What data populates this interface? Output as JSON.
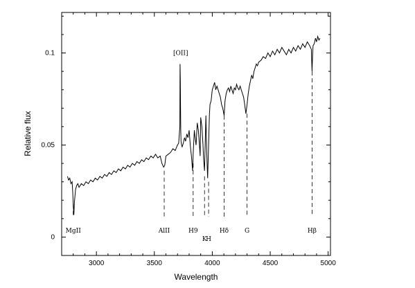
{
  "chart_data": {
    "type": "line",
    "title": "",
    "xlabel": "Wavelength",
    "ylabel": "Relative flux",
    "xlim": [
      2700,
      5020
    ],
    "ylim": [
      -0.01,
      0.122
    ],
    "x_ticks": [
      3000,
      3500,
      4000,
      4500,
      5000
    ],
    "x_tick_labels": [
      "3000",
      "3500",
      "4000",
      "4500",
      "5000"
    ],
    "y_ticks": [
      0,
      0.05,
      0.1
    ],
    "y_tick_labels": [
      "0",
      "0.05",
      "0.1"
    ],
    "grid": false,
    "series": [
      {
        "x": [
          2750,
          2760,
          2770,
          2780,
          2790,
          2795,
          2800,
          2805,
          2810,
          2820,
          2830,
          2840,
          2850,
          2870,
          2890,
          2910,
          2930,
          2950,
          2970,
          2990,
          3010,
          3030,
          3050,
          3070,
          3090,
          3110,
          3130,
          3150,
          3170,
          3190,
          3210,
          3230,
          3250,
          3270,
          3290,
          3310,
          3330,
          3350,
          3370,
          3390,
          3410,
          3430,
          3450,
          3470,
          3490,
          3510,
          3530,
          3550,
          3565,
          3580,
          3590,
          3600,
          3620,
          3640,
          3660,
          3680,
          3700,
          3710,
          3720,
          3722,
          3724,
          3726,
          3728,
          3730,
          3735,
          3740,
          3750,
          3760,
          3770,
          3780,
          3790,
          3800,
          3810,
          3820,
          3830,
          3835,
          3840,
          3845,
          3850,
          3860,
          3870,
          3880,
          3889,
          3895,
          3900,
          3910,
          3920,
          3925,
          3933,
          3940,
          3945,
          3950,
          3955,
          3960,
          3968,
          3975,
          3980,
          3990,
          4000,
          4010,
          4020,
          4030,
          4040,
          4050,
          4060,
          4070,
          4080,
          4090,
          4102,
          4110,
          4120,
          4130,
          4140,
          4150,
          4160,
          4170,
          4180,
          4190,
          4200,
          4210,
          4220,
          4230,
          4240,
          4250,
          4260,
          4270,
          4280,
          4290,
          4300,
          4310,
          4320,
          4330,
          4340,
          4350,
          4360,
          4370,
          4380,
          4390,
          4400,
          4420,
          4440,
          4460,
          4480,
          4500,
          4520,
          4540,
          4560,
          4580,
          4600,
          4620,
          4640,
          4660,
          4680,
          4700,
          4720,
          4740,
          4760,
          4780,
          4800,
          4820,
          4840,
          4855,
          4861,
          4865,
          4870,
          4880,
          4890,
          4900,
          4910,
          4920,
          4930
        ],
        "y": [
          0.033,
          0.031,
          0.032,
          0.029,
          0.03,
          0.025,
          0.018,
          0.012,
          0.019,
          0.026,
          0.028,
          0.029,
          0.027,
          0.029,
          0.028,
          0.03,
          0.029,
          0.031,
          0.03,
          0.032,
          0.031,
          0.033,
          0.032,
          0.034,
          0.033,
          0.035,
          0.034,
          0.036,
          0.035,
          0.037,
          0.036,
          0.038,
          0.037,
          0.039,
          0.038,
          0.04,
          0.039,
          0.041,
          0.04,
          0.042,
          0.041,
          0.043,
          0.042,
          0.044,
          0.043,
          0.045,
          0.043,
          0.044,
          0.04,
          0.038,
          0.039,
          0.044,
          0.045,
          0.046,
          0.048,
          0.047,
          0.05,
          0.051,
          0.06,
          0.094,
          0.085,
          0.07,
          0.058,
          0.052,
          0.05,
          0.049,
          0.051,
          0.054,
          0.052,
          0.056,
          0.054,
          0.058,
          0.05,
          0.044,
          0.036,
          0.045,
          0.052,
          0.058,
          0.055,
          0.05,
          0.062,
          0.058,
          0.05,
          0.044,
          0.065,
          0.06,
          0.05,
          0.042,
          0.036,
          0.054,
          0.066,
          0.05,
          0.04,
          0.032,
          0.05,
          0.066,
          0.072,
          0.074,
          0.08,
          0.082,
          0.084,
          0.08,
          0.082,
          0.08,
          0.078,
          0.076,
          0.072,
          0.07,
          0.066,
          0.074,
          0.078,
          0.08,
          0.081,
          0.079,
          0.082,
          0.08,
          0.078,
          0.081,
          0.08,
          0.083,
          0.081,
          0.08,
          0.082,
          0.08,
          0.078,
          0.076,
          0.072,
          0.067,
          0.072,
          0.078,
          0.082,
          0.085,
          0.088,
          0.086,
          0.09,
          0.092,
          0.094,
          0.093,
          0.095,
          0.096,
          0.098,
          0.097,
          0.1,
          0.098,
          0.101,
          0.099,
          0.102,
          0.1,
          0.103,
          0.101,
          0.099,
          0.102,
          0.1,
          0.103,
          0.101,
          0.104,
          0.102,
          0.105,
          0.103,
          0.106,
          0.104,
          0.102,
          0.09,
          0.098,
          0.104,
          0.105,
          0.108,
          0.106,
          0.109,
          0.107,
          0.108
        ]
      }
    ],
    "annotations": [
      {
        "text": "[OII]",
        "x": 3727,
        "y": 0.1
      },
      {
        "text": "MgII",
        "x": 2800
      },
      {
        "text": "AlII",
        "x": 3585
      },
      {
        "text": "H9",
        "x": 3835
      },
      {
        "text": "K",
        "x": 3933
      },
      {
        "text": "H",
        "x": 3968
      },
      {
        "text": "Hδ",
        "x": 4102
      },
      {
        "text": "G",
        "x": 4300
      },
      {
        "text": "Hβ",
        "x": 4861
      }
    ],
    "line_markers": [
      {
        "x": 2800,
        "y_top": 0.018,
        "y_bottom": 0.011
      },
      {
        "x": 3585,
        "y_top": 0.036,
        "y_bottom": 0.011
      },
      {
        "x": 3835,
        "y_top": 0.04,
        "y_bottom": 0.011
      },
      {
        "x": 3933,
        "y_top": 0.033,
        "y_bottom": 0.011
      },
      {
        "x": 3968,
        "y_top": 0.03,
        "y_bottom": 0.011
      },
      {
        "x": 4102,
        "y_top": 0.066,
        "y_bottom": 0.011
      },
      {
        "x": 4300,
        "y_top": 0.067,
        "y_bottom": 0.011
      },
      {
        "x": 4861,
        "y_top": 0.09,
        "y_bottom": 0.011
      }
    ]
  }
}
